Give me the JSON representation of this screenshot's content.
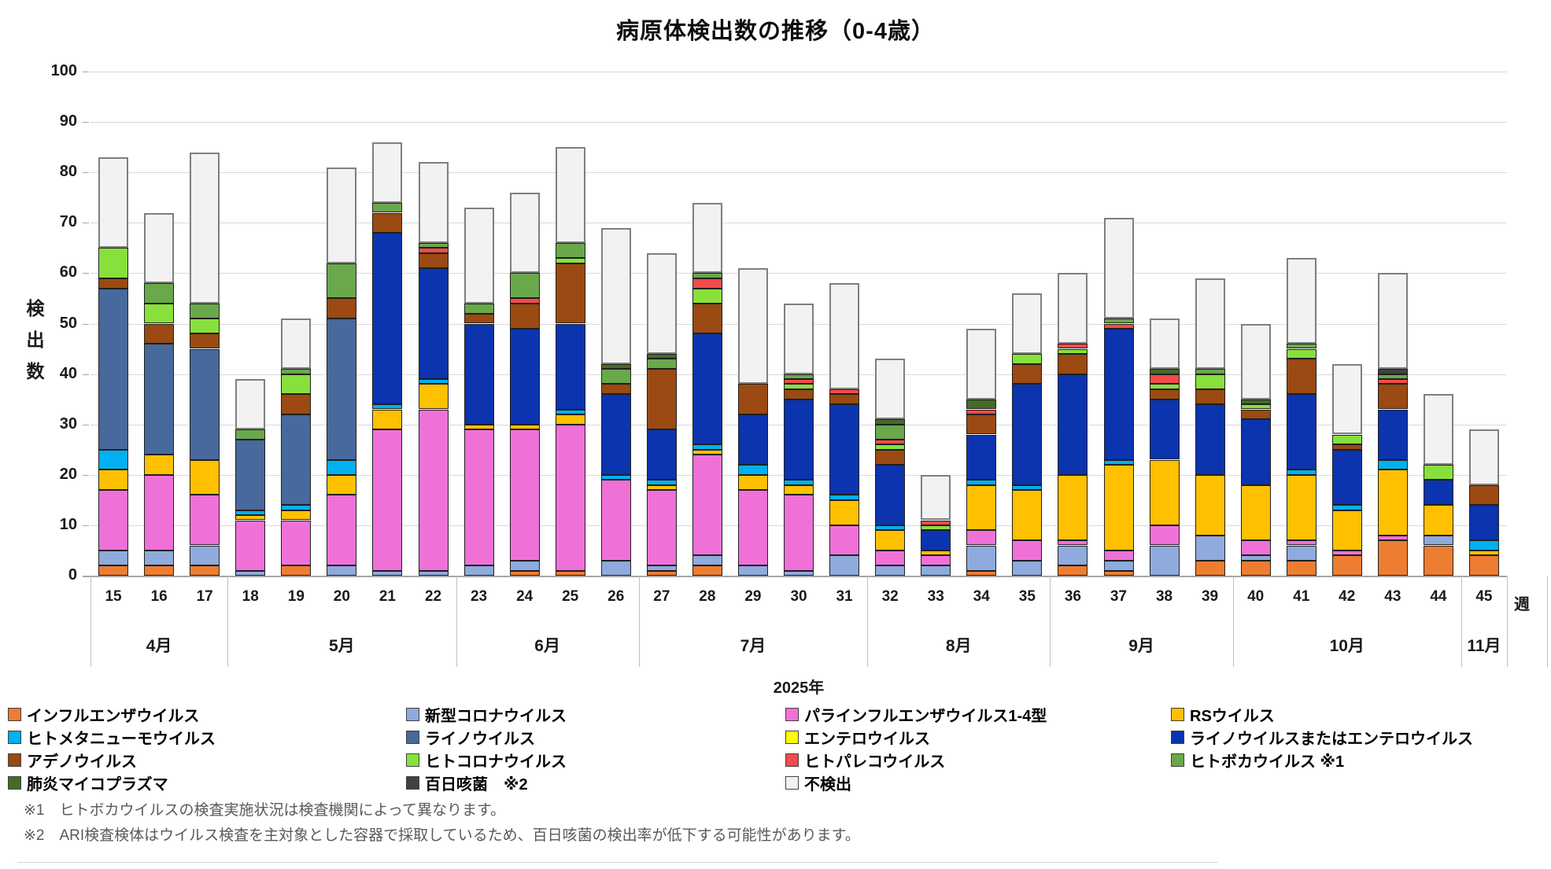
{
  "title": "病原体検出数の推移（0-4歳）",
  "y_axis": {
    "title_vertical": "検\n出\n数",
    "ticks": [
      0,
      10,
      20,
      30,
      40,
      50,
      60,
      70,
      80,
      90,
      100
    ],
    "max": 100
  },
  "x_axis": {
    "unit_label": "週",
    "year_label": "2025年",
    "months": [
      {
        "label": "4月",
        "weeks": 3
      },
      {
        "label": "5月",
        "weeks": 5
      },
      {
        "label": "6月",
        "weeks": 4
      },
      {
        "label": "7月",
        "weeks": 5
      },
      {
        "label": "8月",
        "weeks": 4
      },
      {
        "label": "9月",
        "weeks": 4
      },
      {
        "label": "10月",
        "weeks": 5
      },
      {
        "label": "11月",
        "weeks": 1
      }
    ]
  },
  "chart_data": {
    "type": "bar",
    "stacked": true,
    "grid": true,
    "ylim": [
      0,
      100
    ],
    "categories": [
      15,
      16,
      17,
      18,
      19,
      20,
      21,
      22,
      23,
      24,
      25,
      26,
      27,
      28,
      29,
      30,
      31,
      32,
      33,
      34,
      35,
      36,
      37,
      38,
      39,
      40,
      41,
      42,
      43,
      44,
      45
    ],
    "series": [
      {
        "key": "influenza",
        "name": "インフルエンザウイルス",
        "color": "#ED7D31",
        "values": [
          2,
          2,
          2,
          0,
          2,
          0,
          0,
          0,
          0,
          1,
          1,
          0,
          1,
          2,
          0,
          0,
          0,
          0,
          0,
          1,
          0,
          2,
          1,
          0,
          3,
          3,
          3,
          4,
          7,
          6,
          4
        ]
      },
      {
        "key": "covid",
        "name": "新型コロナウイルス",
        "color": "#8FAADC",
        "values": [
          3,
          3,
          4,
          1,
          0,
          2,
          1,
          1,
          2,
          2,
          0,
          3,
          1,
          2,
          2,
          1,
          4,
          2,
          2,
          5,
          3,
          4,
          2,
          6,
          5,
          1,
          3,
          0,
          0,
          2,
          0
        ]
      },
      {
        "key": "parainfluenza",
        "name": "パラインフルエンザウイルス1-4型",
        "color": "#EF71D8",
        "values": [
          12,
          15,
          10,
          10,
          9,
          14,
          28,
          32,
          27,
          26,
          29,
          16,
          15,
          20,
          15,
          15,
          6,
          3,
          2,
          3,
          4,
          1,
          2,
          4,
          0,
          3,
          1,
          1,
          1,
          0,
          0
        ]
      },
      {
        "key": "rs",
        "name": "RSウイルス",
        "color": "#FFC000",
        "values": [
          4,
          4,
          7,
          1,
          2,
          4,
          4,
          5,
          1,
          1,
          2,
          0,
          1,
          1,
          3,
          2,
          5,
          4,
          1,
          9,
          10,
          13,
          17,
          13,
          12,
          11,
          13,
          8,
          13,
          6,
          1
        ]
      },
      {
        "key": "hmpv",
        "name": "ヒトメタニューモウイルス",
        "color": "#00B0F0",
        "values": [
          4,
          0,
          0,
          1,
          1,
          3,
          1,
          1,
          0,
          0,
          1,
          1,
          1,
          1,
          2,
          1,
          1,
          1,
          0,
          1,
          1,
          0,
          1,
          0,
          0,
          0,
          1,
          1,
          2,
          0,
          2
        ]
      },
      {
        "key": "rhinovirus",
        "name": "ライノウイルス",
        "color": "#48699B",
        "values": [
          32,
          22,
          22,
          14,
          18,
          28,
          0,
          0,
          0,
          0,
          0,
          0,
          0,
          0,
          0,
          0,
          0,
          0,
          0,
          0,
          0,
          0,
          0,
          0,
          0,
          0,
          0,
          0,
          0,
          0,
          0
        ]
      },
      {
        "key": "enterovirus",
        "name": "エンテロウイルス",
        "color": "#FFFF00",
        "values": [
          0,
          0,
          0,
          0,
          0,
          0,
          0,
          0,
          0,
          0,
          0,
          0,
          0,
          0,
          0,
          0,
          0,
          0,
          0,
          0,
          0,
          0,
          0,
          0,
          0,
          0,
          0,
          0,
          0,
          0,
          0
        ]
      },
      {
        "key": "rhino_or_entero",
        "name": "ライノウイルスまたはエンテロウイルス",
        "color": "#0B34AE",
        "values": [
          0,
          0,
          0,
          0,
          0,
          0,
          34,
          22,
          20,
          19,
          17,
          16,
          10,
          22,
          10,
          16,
          18,
          12,
          4,
          9,
          20,
          20,
          26,
          12,
          14,
          13,
          15,
          11,
          10,
          5,
          7
        ]
      },
      {
        "key": "adenovirus",
        "name": "アデノウイルス",
        "color": "#9A4A12",
        "values": [
          2,
          4,
          3,
          0,
          4,
          4,
          4,
          3,
          2,
          5,
          12,
          2,
          12,
          6,
          6,
          2,
          2,
          3,
          0,
          4,
          4,
          4,
          0,
          2,
          3,
          2,
          7,
          1,
          5,
          0,
          4
        ]
      },
      {
        "key": "hcov",
        "name": "ヒトコロナウイルス",
        "color": "#88E03C",
        "values": [
          6,
          4,
          3,
          0,
          4,
          0,
          0,
          0,
          0,
          0,
          1,
          0,
          0,
          3,
          0,
          1,
          0,
          1,
          1,
          0,
          2,
          1,
          0,
          1,
          3,
          1,
          2,
          2,
          0,
          3,
          0
        ]
      },
      {
        "key": "parechovirus",
        "name": "ヒトパレコウイルス",
        "color": "#F24B4B",
        "values": [
          0,
          0,
          0,
          0,
          0,
          0,
          0,
          1,
          0,
          1,
          0,
          0,
          0,
          2,
          0,
          1,
          1,
          1,
          1,
          1,
          0,
          1,
          1,
          2,
          0,
          0,
          0,
          0,
          1,
          0,
          0
        ]
      },
      {
        "key": "bocavirus",
        "name": "ヒトボカウイルス ※1",
        "color": "#69A84B",
        "values": [
          0,
          4,
          3,
          2,
          1,
          7,
          2,
          1,
          2,
          5,
          3,
          3,
          2,
          1,
          0,
          1,
          0,
          3,
          0,
          0,
          0,
          0,
          1,
          0,
          1,
          0,
          1,
          0,
          1,
          0,
          0
        ]
      },
      {
        "key": "mycoplasma",
        "name": "肺炎マイコプラズマ",
        "color": "#446B28",
        "values": [
          0,
          0,
          0,
          0,
          0,
          0,
          0,
          0,
          0,
          0,
          0,
          1,
          1,
          0,
          0,
          0,
          0,
          1,
          0,
          2,
          0,
          0,
          0,
          1,
          0,
          1,
          0,
          0,
          0,
          0,
          0
        ]
      },
      {
        "key": "pertussis",
        "name": "百日咳菌　※2",
        "color": "#454040",
        "values": [
          0,
          0,
          0,
          0,
          0,
          0,
          0,
          0,
          0,
          0,
          0,
          0,
          0,
          0,
          0,
          0,
          0,
          0,
          0,
          0,
          0,
          0,
          0,
          0,
          0,
          0,
          0,
          0,
          1,
          0,
          0
        ]
      },
      {
        "key": "negative",
        "name": "不検出",
        "color": "#F2F2F2",
        "values": [
          18,
          14,
          30,
          10,
          10,
          19,
          12,
          16,
          19,
          16,
          19,
          27,
          20,
          14,
          23,
          14,
          21,
          12,
          9,
          14,
          12,
          14,
          20,
          10,
          18,
          15,
          17,
          14,
          19,
          14,
          11
        ]
      }
    ]
  },
  "legend": {
    "column_layout": [
      [
        0,
        4,
        8,
        12
      ],
      [
        1,
        5,
        9,
        13
      ],
      [
        2,
        6,
        10,
        14
      ],
      [
        3,
        7,
        11
      ]
    ]
  },
  "footnotes": [
    "※1　ヒトボカウイルスの検査実施状況は検査機関によって異なります。",
    "※2　ARI検査検体はウイルス検査を主対象とした容器で採取しているため、百日咳菌の検出率が低下する可能性があります。"
  ]
}
